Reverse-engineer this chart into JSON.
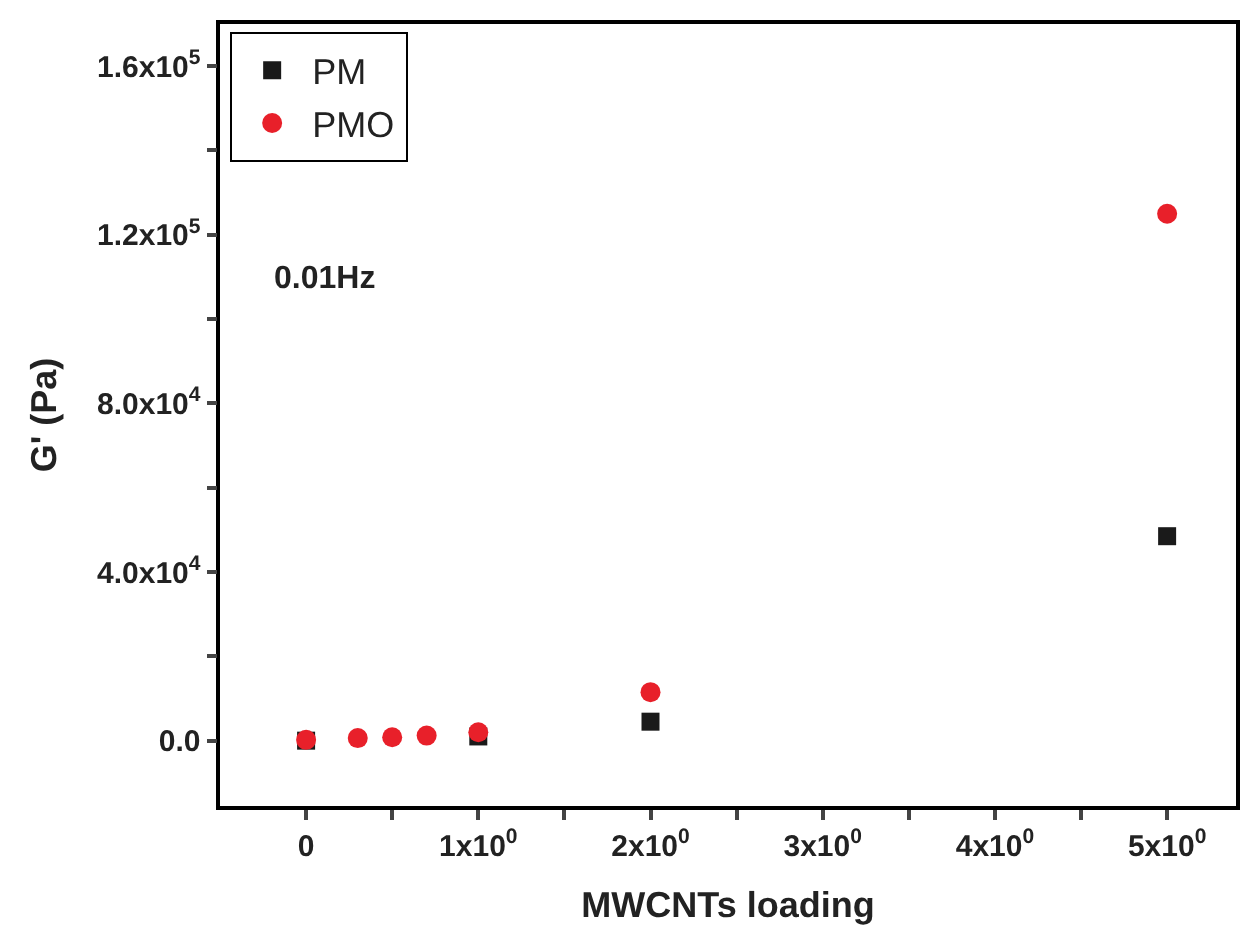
{
  "chart_data": {
    "type": "scatter",
    "xlabel": "MWCNTs loading",
    "ylabel": "G' (Pa)",
    "annotations": [
      "0.01Hz"
    ],
    "x": [
      0,
      0.3,
      0.5,
      0.7,
      1,
      2,
      5
    ],
    "series": [
      {
        "name": "PM",
        "color": "#1a1a1a",
        "marker": "square",
        "values": [
          0,
          null,
          null,
          null,
          1000,
          4500,
          48500
        ]
      },
      {
        "name": "PMO",
        "color": "#e8202a",
        "marker": "circle",
        "values": [
          200,
          600,
          800,
          1200,
          2000,
          11500,
          125000
        ]
      }
    ],
    "xlim": [
      -0.5,
      5.4
    ],
    "ylim": [
      -15500,
      170000
    ],
    "xticks": [
      {
        "value": 0,
        "label": "0"
      },
      {
        "value": 0.5,
        "label": null
      },
      {
        "value": 1,
        "label": "1x10$^{0}$"
      },
      {
        "value": 1.5,
        "label": null
      },
      {
        "value": 2,
        "label": "2x10$^{0}$"
      },
      {
        "value": 2.5,
        "label": null
      },
      {
        "value": 3,
        "label": "3x10$^{0}$"
      },
      {
        "value": 3.5,
        "label": null
      },
      {
        "value": 4,
        "label": "4x10$^{0}$"
      },
      {
        "value": 4.5,
        "label": null
      },
      {
        "value": 5,
        "label": "5x10$^{0}$"
      }
    ],
    "yticks": [
      {
        "value": 0,
        "label": "0.0"
      },
      {
        "value": 20000,
        "label": null
      },
      {
        "value": 40000,
        "label": "4.0x10$^{4}$"
      },
      {
        "value": 60000,
        "label": null
      },
      {
        "value": 80000,
        "label": "8.0x10$^{4}$"
      },
      {
        "value": 100000,
        "label": null
      },
      {
        "value": 120000,
        "label": "1.2x10$^{5}$"
      },
      {
        "value": 140000,
        "label": null
      },
      {
        "value": 160000,
        "label": "1.6x10$^{5}$"
      }
    ],
    "grid": false,
    "legend": "top left"
  }
}
